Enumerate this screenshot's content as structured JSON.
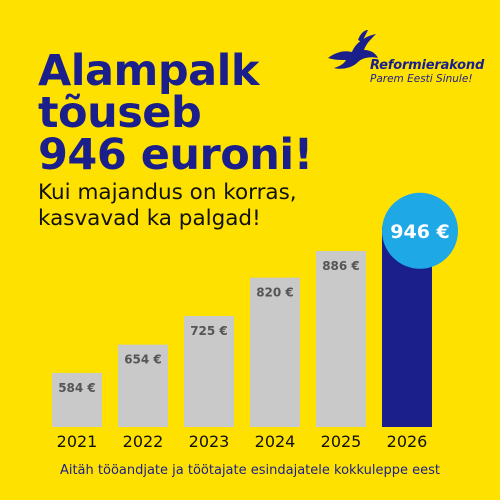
{
  "headline": {
    "line1": "Alampalk",
    "line2": "tõuseb",
    "line3": "946 euroni!"
  },
  "subtitle": {
    "line1": "Kui majandus on korras,",
    "line2": "kasvavad ka palgad!"
  },
  "logo": {
    "name": "Reformierakond",
    "slogan": "Parem Eesti Sinule!"
  },
  "footer": "Aitäh tööandjate ja töötajate esindajatele kokkuleppe eest",
  "colors": {
    "background": "#FFE100",
    "brand_blue": "#1A1F8C",
    "bar_gray": "#C9C9C9",
    "bar_highlight": "#1A1F8C",
    "badge": "#1EA8E6"
  },
  "chart_data": {
    "type": "bar",
    "categories": [
      "2021",
      "2022",
      "2023",
      "2024",
      "2025",
      "2026"
    ],
    "values": [
      584,
      654,
      725,
      820,
      886,
      946
    ],
    "value_labels": [
      "584 €",
      "654 €",
      "725 €",
      "820 €",
      "886 €",
      "946 €"
    ],
    "highlight_index": 5,
    "title": "",
    "xlabel": "",
    "ylabel": "",
    "ylim": [
      450,
      1000
    ],
    "grid": false,
    "legend": "none"
  }
}
